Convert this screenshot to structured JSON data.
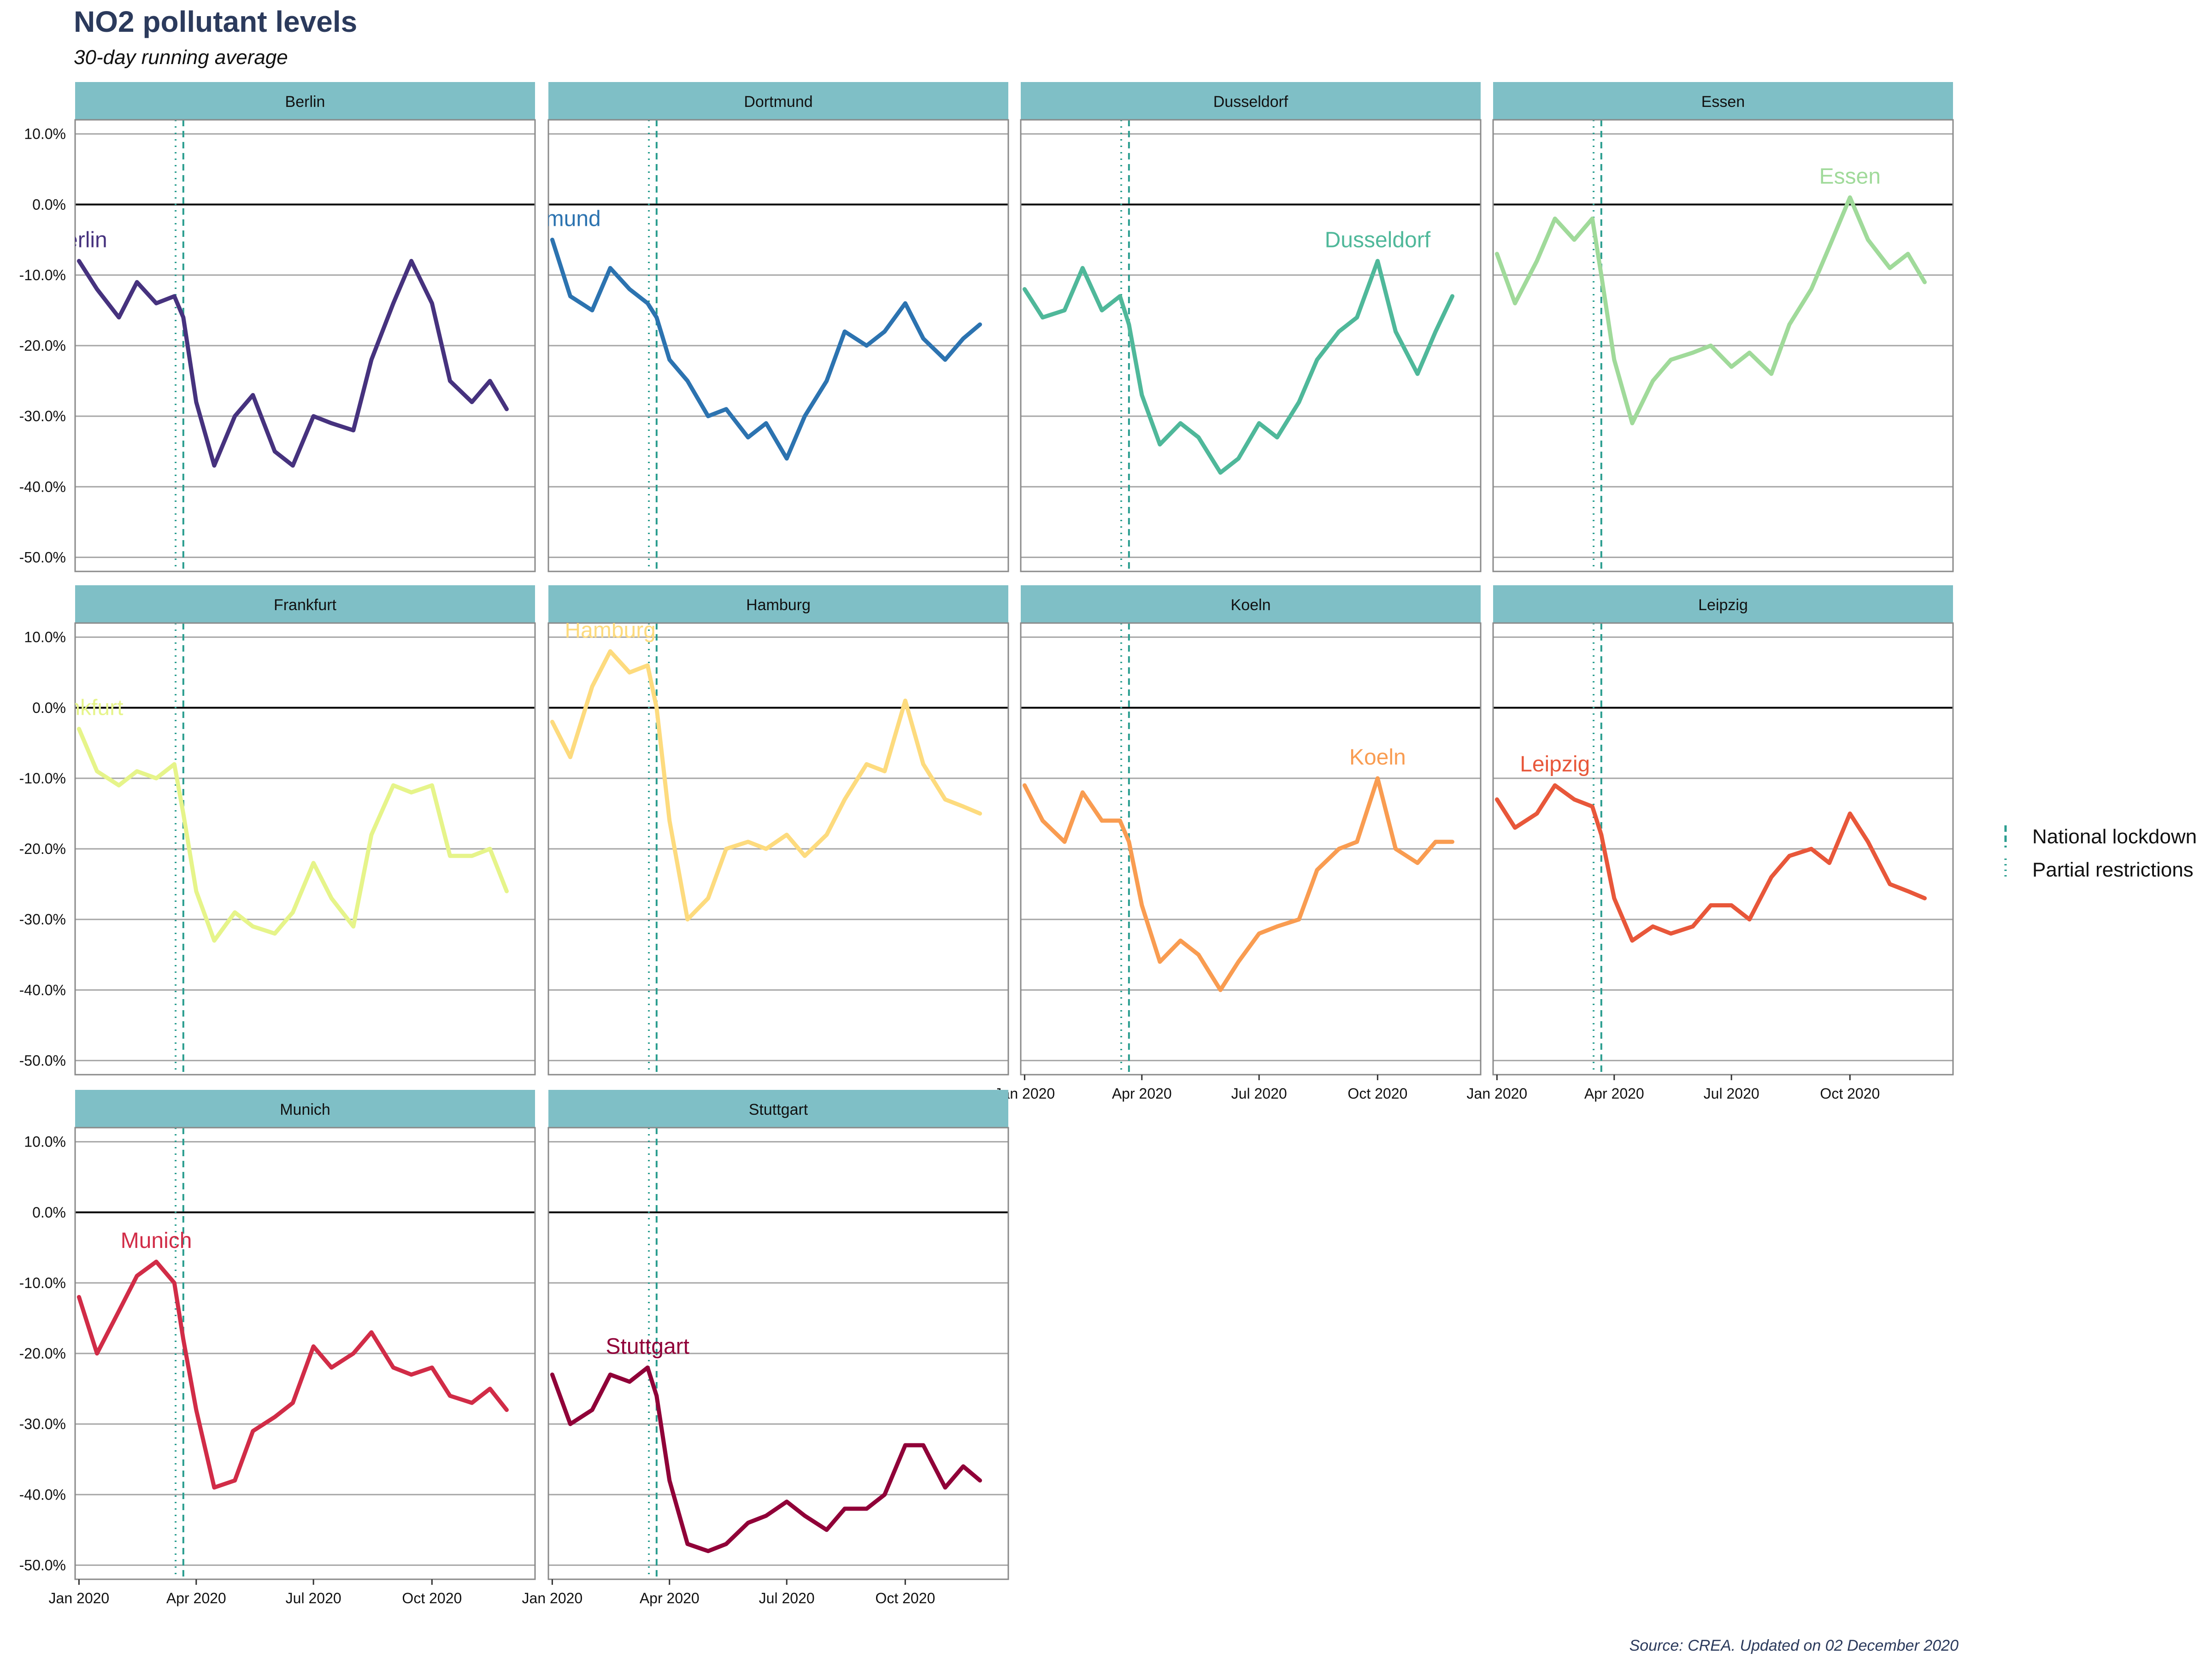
{
  "chart_data": {
    "type": "line",
    "title": "NO2 pollutant levels",
    "subtitle": "30-day running average",
    "caption": "Source: CREA. Updated on 02 December 2020",
    "x_ticks": [
      "Jan 2020",
      "Apr 2020",
      "Jul 2020",
      "Oct 2020"
    ],
    "x_range": [
      "2019-12-29",
      "2020-12-20"
    ],
    "y_ticks": [
      "10.0%",
      "0.0%",
      "-10.0%",
      "-20.0%",
      "-30.0%",
      "-40.0%",
      "-50.0%"
    ],
    "ylim": [
      -52,
      12
    ],
    "ylabel": "",
    "xlabel": "",
    "grid": true,
    "legend": {
      "position": "right",
      "entries": [
        {
          "label": "National lockdown",
          "date": "2020-03-22",
          "line_style": "dashed",
          "color": "#2a9d8f"
        },
        {
          "label": "Partial restrictions",
          "date": "2020-03-16",
          "line_style": "dotted",
          "color": "#2a9d8f"
        }
      ]
    },
    "facet_strip_color": "#7fbfc6",
    "series": [
      {
        "name": "Berlin",
        "color": "#46327e",
        "x": [
          "2020-01-01",
          "2020-01-15",
          "2020-02-01",
          "2020-02-15",
          "2020-03-01",
          "2020-03-15",
          "2020-03-22",
          "2020-04-01",
          "2020-04-15",
          "2020-05-01",
          "2020-05-15",
          "2020-06-01",
          "2020-06-15",
          "2020-07-01",
          "2020-07-15",
          "2020-08-01",
          "2020-08-15",
          "2020-09-01",
          "2020-09-15",
          "2020-10-01",
          "2020-10-15",
          "2020-11-01",
          "2020-11-15",
          "2020-11-28"
        ],
        "y": [
          -8,
          -12,
          -16,
          -11,
          -14,
          -13,
          -16,
          -28,
          -37,
          -30,
          -27,
          -35,
          -37,
          -30,
          -31,
          -32,
          -22,
          -14,
          -8,
          -14,
          -25,
          -28,
          -25,
          -29
        ]
      },
      {
        "name": "Dortmund",
        "color": "#2c73b0",
        "x": [
          "2020-01-01",
          "2020-01-15",
          "2020-02-01",
          "2020-02-15",
          "2020-03-01",
          "2020-03-15",
          "2020-03-22",
          "2020-04-01",
          "2020-04-15",
          "2020-05-01",
          "2020-05-15",
          "2020-06-01",
          "2020-06-15",
          "2020-07-01",
          "2020-07-15",
          "2020-08-01",
          "2020-08-15",
          "2020-09-01",
          "2020-09-15",
          "2020-10-01",
          "2020-10-15",
          "2020-11-01",
          "2020-11-15",
          "2020-11-28"
        ],
        "y": [
          -5,
          -13,
          -15,
          -9,
          -12,
          -14,
          -16,
          -22,
          -25,
          -30,
          -29,
          -33,
          -31,
          -36,
          -30,
          -25,
          -18,
          -20,
          -18,
          -14,
          -19,
          -22,
          -19,
          -17
        ]
      },
      {
        "name": "Dusseldorf",
        "color": "#4fb89a",
        "x": [
          "2020-01-01",
          "2020-01-15",
          "2020-02-01",
          "2020-02-15",
          "2020-03-01",
          "2020-03-15",
          "2020-03-22",
          "2020-04-01",
          "2020-04-15",
          "2020-05-01",
          "2020-05-15",
          "2020-06-01",
          "2020-06-15",
          "2020-07-01",
          "2020-07-15",
          "2020-08-01",
          "2020-08-15",
          "2020-09-01",
          "2020-09-15",
          "2020-10-01",
          "2020-10-15",
          "2020-11-01",
          "2020-11-15",
          "2020-11-28"
        ],
        "y": [
          -12,
          -16,
          -15,
          -9,
          -15,
          -13,
          -17,
          -27,
          -34,
          -31,
          -33,
          -38,
          -36,
          -31,
          -33,
          -28,
          -22,
          -18,
          -16,
          -8,
          -18,
          -24,
          -18,
          -13
        ]
      },
      {
        "name": "Essen",
        "color": "#a0da9a",
        "x": [
          "2020-01-01",
          "2020-01-15",
          "2020-02-01",
          "2020-02-15",
          "2020-03-01",
          "2020-03-15",
          "2020-03-22",
          "2020-04-01",
          "2020-04-15",
          "2020-05-01",
          "2020-05-15",
          "2020-06-01",
          "2020-06-15",
          "2020-07-01",
          "2020-07-15",
          "2020-08-01",
          "2020-08-15",
          "2020-09-01",
          "2020-09-15",
          "2020-10-01",
          "2020-10-15",
          "2020-11-01",
          "2020-11-15",
          "2020-11-28"
        ],
        "y": [
          -7,
          -14,
          -8,
          -2,
          -5,
          -2,
          -10,
          -22,
          -31,
          -25,
          -22,
          -21,
          -20,
          -23,
          -21,
          -24,
          -17,
          -12,
          -6,
          1,
          -5,
          -9,
          -7,
          -11
        ]
      },
      {
        "name": "Frankfurt",
        "color": "#e6f48a",
        "x": [
          "2020-01-01",
          "2020-01-15",
          "2020-02-01",
          "2020-02-15",
          "2020-03-01",
          "2020-03-15",
          "2020-03-22",
          "2020-04-01",
          "2020-04-15",
          "2020-05-01",
          "2020-05-15",
          "2020-06-01",
          "2020-06-15",
          "2020-07-01",
          "2020-07-15",
          "2020-08-01",
          "2020-08-15",
          "2020-09-01",
          "2020-09-15",
          "2020-10-01",
          "2020-10-15",
          "2020-11-01",
          "2020-11-15",
          "2020-11-28"
        ],
        "y": [
          -3,
          -9,
          -11,
          -9,
          -10,
          -8,
          -15,
          -26,
          -33,
          -29,
          -31,
          -32,
          -29,
          -22,
          -27,
          -31,
          -18,
          -11,
          -12,
          -11,
          -21,
          -21,
          -20,
          -26
        ]
      },
      {
        "name": "Hamburg",
        "color": "#fddb7e",
        "x": [
          "2020-01-01",
          "2020-01-15",
          "2020-02-01",
          "2020-02-15",
          "2020-03-01",
          "2020-03-15",
          "2020-03-22",
          "2020-04-01",
          "2020-04-15",
          "2020-05-01",
          "2020-05-15",
          "2020-06-01",
          "2020-06-15",
          "2020-07-01",
          "2020-07-15",
          "2020-08-01",
          "2020-08-15",
          "2020-09-01",
          "2020-09-15",
          "2020-10-01",
          "2020-10-15",
          "2020-11-01",
          "2020-11-15",
          "2020-11-28"
        ],
        "y": [
          -2,
          -7,
          3,
          8,
          5,
          6,
          0,
          -16,
          -30,
          -27,
          -20,
          -19,
          -20,
          -18,
          -21,
          -18,
          -13,
          -8,
          -9,
          1,
          -8,
          -13,
          -14,
          -15
        ]
      },
      {
        "name": "Koeln",
        "color": "#f99c51",
        "x": [
          "2020-01-01",
          "2020-01-15",
          "2020-02-01",
          "2020-02-15",
          "2020-03-01",
          "2020-03-15",
          "2020-03-22",
          "2020-04-01",
          "2020-04-15",
          "2020-05-01",
          "2020-05-15",
          "2020-06-01",
          "2020-06-15",
          "2020-07-01",
          "2020-07-15",
          "2020-08-01",
          "2020-08-15",
          "2020-09-01",
          "2020-09-15",
          "2020-10-01",
          "2020-10-15",
          "2020-11-01",
          "2020-11-15",
          "2020-11-28"
        ],
        "y": [
          -11,
          -16,
          -19,
          -12,
          -16,
          -16,
          -19,
          -28,
          -36,
          -33,
          -35,
          -40,
          -36,
          -32,
          -31,
          -30,
          -23,
          -20,
          -19,
          -10,
          -20,
          -22,
          -19,
          -19
        ]
      },
      {
        "name": "Leipzig",
        "color": "#e8573a",
        "x": [
          "2020-01-01",
          "2020-01-15",
          "2020-02-01",
          "2020-02-15",
          "2020-03-01",
          "2020-03-15",
          "2020-03-22",
          "2020-04-01",
          "2020-04-15",
          "2020-05-01",
          "2020-05-15",
          "2020-06-01",
          "2020-06-15",
          "2020-07-01",
          "2020-07-15",
          "2020-08-01",
          "2020-08-15",
          "2020-09-01",
          "2020-09-15",
          "2020-10-01",
          "2020-10-15",
          "2020-11-01",
          "2020-11-15",
          "2020-11-28"
        ],
        "y": [
          -13,
          -17,
          -15,
          -11,
          -13,
          -14,
          -18,
          -27,
          -33,
          -31,
          -32,
          -31,
          -28,
          -28,
          -30,
          -24,
          -21,
          -20,
          -22,
          -15,
          -19,
          -25,
          -26,
          -27
        ]
      },
      {
        "name": "Munich",
        "color": "#d12c47",
        "x": [
          "2020-01-01",
          "2020-01-15",
          "2020-02-01",
          "2020-02-15",
          "2020-03-01",
          "2020-03-15",
          "2020-03-22",
          "2020-04-01",
          "2020-04-15",
          "2020-05-01",
          "2020-05-15",
          "2020-06-01",
          "2020-06-15",
          "2020-07-01",
          "2020-07-15",
          "2020-08-01",
          "2020-08-15",
          "2020-09-01",
          "2020-09-15",
          "2020-10-01",
          "2020-10-15",
          "2020-11-01",
          "2020-11-15",
          "2020-11-28"
        ],
        "y": [
          -12,
          -20,
          -14,
          -9,
          -7,
          -10,
          -18,
          -28,
          -39,
          -38,
          -31,
          -29,
          -27,
          -19,
          -22,
          -20,
          -17,
          -22,
          -23,
          -22,
          -26,
          -27,
          -25,
          -28
        ]
      },
      {
        "name": "Stuttgart",
        "color": "#900038",
        "x": [
          "2020-01-01",
          "2020-01-15",
          "2020-02-01",
          "2020-02-15",
          "2020-03-01",
          "2020-03-15",
          "2020-03-22",
          "2020-04-01",
          "2020-04-15",
          "2020-05-01",
          "2020-05-15",
          "2020-06-01",
          "2020-06-15",
          "2020-07-01",
          "2020-07-15",
          "2020-08-01",
          "2020-08-15",
          "2020-09-01",
          "2020-09-15",
          "2020-10-01",
          "2020-10-15",
          "2020-11-01",
          "2020-11-15",
          "2020-11-28"
        ],
        "y": [
          -23,
          -30,
          -28,
          -23,
          -24,
          -22,
          -26,
          -38,
          -47,
          -48,
          -47,
          -44,
          -43,
          -41,
          -43,
          -45,
          -42,
          -42,
          -40,
          -33,
          -33,
          -39,
          -36,
          -38
        ]
      }
    ]
  }
}
